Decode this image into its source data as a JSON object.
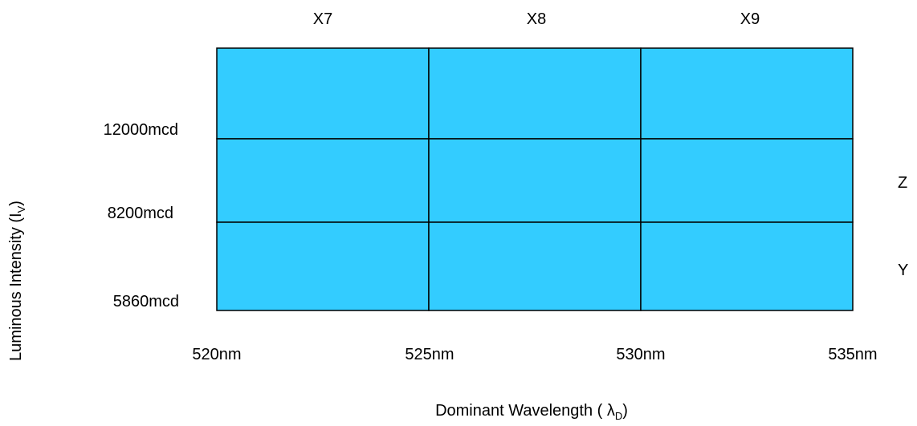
{
  "bins": {
    "columns": [
      "X7",
      "X8",
      "X9"
    ],
    "rows_right": [
      "Z",
      "Y"
    ],
    "wavelength_ticks": [
      "520nm",
      "525nm",
      "530nm",
      "535nm"
    ],
    "intensity_ticks": [
      "12000mcd",
      "8200mcd",
      "5860mcd"
    ],
    "x_axis_label": "Dominant Wavelength ( λ",
    "x_axis_label_sub": "D",
    "x_axis_label_end": ")",
    "y_axis_label": "Luminous Intensity (I",
    "y_axis_label_sub": "V",
    "y_axis_label_end": ")",
    "cell_color": "#33CCFF",
    "grid": {
      "rows": 3,
      "cols": 3
    }
  }
}
